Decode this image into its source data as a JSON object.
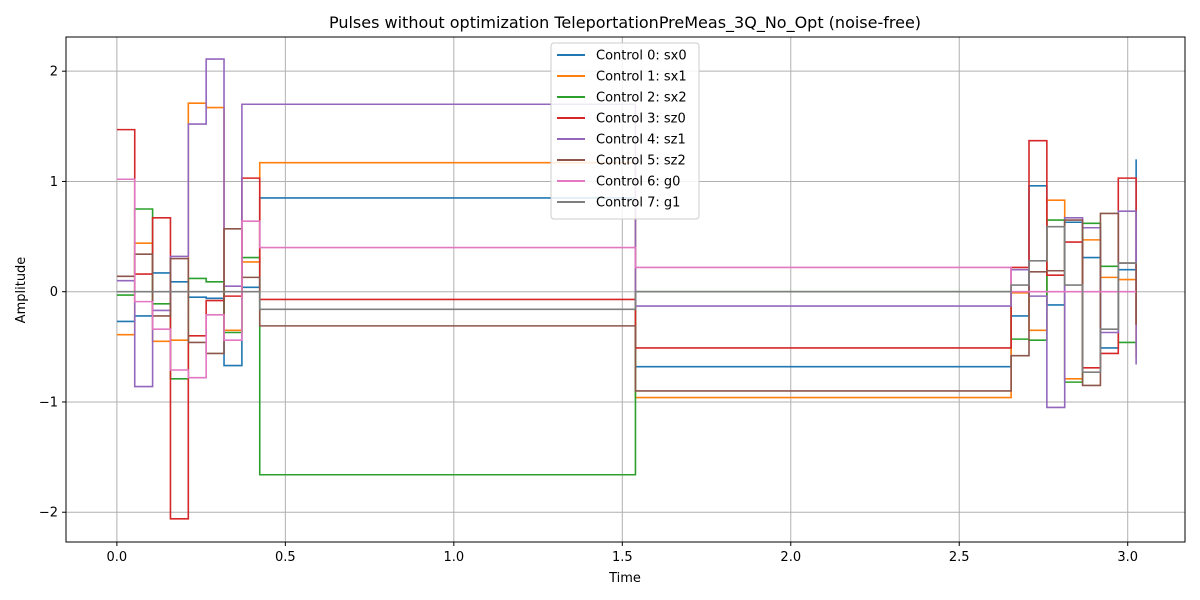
{
  "chart_data": {
    "type": "line",
    "step": true,
    "title": "Pulses without optimization TeleportationPreMeas_3Q_No_Opt (noise-free)",
    "xlabel": "Time",
    "ylabel": "Amplitude",
    "xlim": [
      -0.151,
      3.17
    ],
    "ylim": [
      -2.27,
      2.31
    ],
    "xticks": [
      0.0,
      0.5,
      1.0,
      1.5,
      2.0,
      2.5,
      3.0
    ],
    "xtick_labels": [
      "0.0",
      "0.5",
      "1.0",
      "1.5",
      "2.0",
      "2.5",
      "3.0"
    ],
    "yticks": [
      -2,
      -1,
      0,
      1,
      2
    ],
    "ytick_labels": [
      "−2",
      "−1",
      "0",
      "1",
      "2"
    ],
    "grid": true,
    "legend_position": "top-center",
    "edges": [
      0.0,
      0.053,
      0.106,
      0.159,
      0.212,
      0.265,
      0.318,
      0.371,
      0.424,
      1.539,
      2.654,
      2.707,
      2.76,
      2.813,
      2.866,
      2.919,
      2.972,
      3.025
    ],
    "series": [
      {
        "name": "Control 0: sx0",
        "color": "#1f77b4",
        "values": [
          -0.27,
          -0.22,
          0.17,
          0.09,
          -0.05,
          -0.06,
          -0.67,
          0.04,
          0.85,
          -0.68,
          -0.22,
          0.96,
          -0.12,
          0.63,
          0.31,
          -0.51,
          0.2,
          1.2
        ]
      },
      {
        "name": "Control 1: sx1",
        "color": "#ff7f0e",
        "values": [
          -0.39,
          0.44,
          -0.45,
          -0.44,
          1.71,
          1.67,
          -0.35,
          0.27,
          1.17,
          -0.96,
          -0.01,
          -0.35,
          0.83,
          -0.79,
          0.47,
          0.13,
          0.11,
          -0.6
        ]
      },
      {
        "name": "Control 2: sx2",
        "color": "#2ca02c",
        "values": [
          -0.03,
          0.75,
          -0.11,
          -0.79,
          0.12,
          0.09,
          -0.37,
          0.31,
          -1.66,
          0.0,
          -0.43,
          -0.44,
          0.65,
          -0.82,
          0.62,
          0.23,
          -0.46,
          -0.5
        ]
      },
      {
        "name": "Control 3: sz0",
        "color": "#d62728",
        "values": [
          1.47,
          0.16,
          0.67,
          -2.06,
          -0.4,
          -0.08,
          -0.04,
          1.03,
          -0.07,
          -0.51,
          0.22,
          1.37,
          0.15,
          0.45,
          -0.69,
          -0.56,
          1.03,
          -0.3
        ]
      },
      {
        "name": "Control 4: sz1",
        "color": "#9467bd",
        "values": [
          0.1,
          -0.86,
          -0.17,
          0.32,
          1.52,
          2.11,
          0.05,
          1.7,
          1.7,
          -0.13,
          0.2,
          -0.04,
          -1.05,
          0.67,
          0.58,
          -0.37,
          0.73,
          -0.66
        ]
      },
      {
        "name": "Control 5: sz2",
        "color": "#8c564b",
        "values": [
          0.14,
          0.34,
          -0.22,
          0.3,
          -0.46,
          -0.56,
          0.57,
          0.13,
          -0.31,
          -0.9,
          -0.58,
          0.18,
          0.19,
          0.65,
          -0.85,
          0.71,
          0.26,
          -0.3
        ]
      },
      {
        "name": "Control 6: g0",
        "color": "#e377c2",
        "values": [
          1.02,
          -0.09,
          -0.34,
          -0.71,
          -0.78,
          -0.21,
          -0.44,
          0.64,
          0.4,
          0.22,
          0.0,
          0.0,
          0.0,
          0.0,
          0.0,
          0.0,
          0.0,
          0.0
        ]
      },
      {
        "name": "Control 7: g1",
        "color": "#7f7f7f",
        "values": [
          0.0,
          0.0,
          0.0,
          0.0,
          0.0,
          0.0,
          0.0,
          0.0,
          -0.16,
          0.0,
          0.06,
          0.28,
          0.59,
          0.06,
          -0.73,
          -0.34,
          0.26,
          0.25
        ]
      }
    ]
  }
}
